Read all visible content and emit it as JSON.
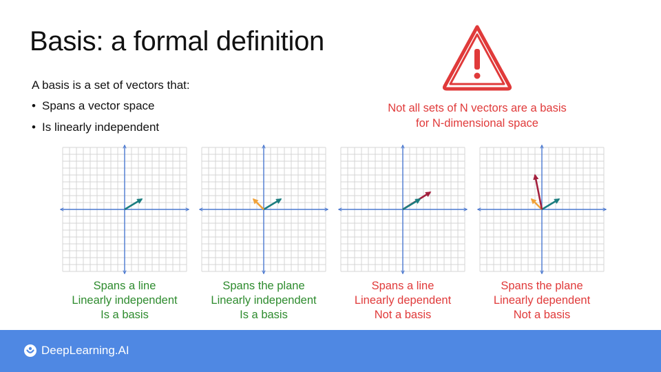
{
  "slide": {
    "title": "Basis: a formal definition",
    "intro": "A basis is a set of vectors that:",
    "bullets": [
      "Spans a vector space",
      "Is linearly independent"
    ],
    "warning": {
      "icon": "warning-triangle-icon",
      "line1": "Not all sets of N vectors are a basis",
      "line2": "for N-dimensional space",
      "color": "#e03a3a"
    }
  },
  "colors": {
    "green_text": "#2e8b2e",
    "red_text": "#e03a3a",
    "axis": "#4a78d0",
    "grid": "#d4d4d4",
    "teal_vector": "#1b7d7f",
    "orange_vector": "#f0a23a",
    "crimson_vector": "#a3203d",
    "footer": "#4f88e3"
  },
  "panels": [
    {
      "vectors": [
        {
          "x": 2.5,
          "y": 1.5,
          "color": "teal"
        }
      ],
      "caption": [
        "Spans a line",
        "Linearly independent",
        "Is a basis"
      ],
      "caption_color": "green"
    },
    {
      "vectors": [
        {
          "x": 2.5,
          "y": 1.5,
          "color": "teal"
        },
        {
          "x": -1.5,
          "y": 1.5,
          "color": "orange"
        }
      ],
      "caption": [
        "Spans the plane",
        "Linearly independent",
        "Is a basis"
      ],
      "caption_color": "green"
    },
    {
      "vectors": [
        {
          "x": 4.0,
          "y": 2.5,
          "color": "crimson"
        },
        {
          "x": 2.5,
          "y": 1.5,
          "color": "teal"
        }
      ],
      "caption": [
        "Spans a line",
        "Linearly dependent",
        "Not a basis"
      ],
      "caption_color": "red"
    },
    {
      "vectors": [
        {
          "x": 2.5,
          "y": 1.5,
          "color": "teal"
        },
        {
          "x": -1.5,
          "y": 1.5,
          "color": "orange"
        },
        {
          "x": -1.0,
          "y": 5.0,
          "color": "crimson"
        }
      ],
      "caption": [
        "Spans the plane",
        "Linearly dependent",
        "Not a basis"
      ],
      "caption_color": "red"
    }
  ],
  "footer": {
    "brand": "DeepLearning.AI",
    "logo_icon": "deeplearning-ai-logo-icon"
  }
}
